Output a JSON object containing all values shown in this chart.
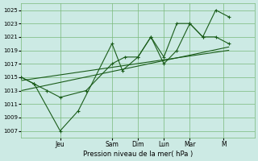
{
  "bg_color": "#cceae4",
  "grid_color": "#7ab87a",
  "line_color": "#1a5c1a",
  "xlabel": "Pression niveau de la mer( hPa )",
  "ylim": [
    1006,
    1026
  ],
  "yticks": [
    1007,
    1009,
    1011,
    1013,
    1015,
    1017,
    1019,
    1021,
    1023,
    1025
  ],
  "xlim": [
    0,
    9.0
  ],
  "day_labels": [
    "Jeu",
    "Sam",
    "Dim",
    "Lun",
    "Mar",
    "M"
  ],
  "day_positions": [
    1.5,
    3.5,
    4.5,
    5.5,
    6.5,
    7.8
  ],
  "line_jagged_x": [
    0.0,
    0.5,
    1.5,
    2.2,
    3.5,
    3.9,
    4.5,
    5.0,
    5.5,
    6.0,
    6.5,
    7.0,
    7.5,
    8.0
  ],
  "line_jagged_y": [
    1015,
    1014,
    1007,
    1010,
    1020,
    1016,
    1018,
    1021,
    1017,
    1019,
    1023,
    1021,
    1025,
    1024
  ],
  "line_smooth_x": [
    0.0,
    0.5,
    1.0,
    1.5,
    2.5,
    3.5,
    4.0,
    4.5,
    5.0,
    5.5,
    6.0,
    6.5,
    7.0,
    7.5,
    8.0
  ],
  "line_smooth_y": [
    1015,
    1014,
    1013,
    1012,
    1013,
    1017,
    1018,
    1018,
    1021,
    1018,
    1023,
    1023,
    1021,
    1021,
    1020
  ],
  "trend1_x": [
    0.0,
    8.0
  ],
  "trend1_y": [
    1013.0,
    1019.5
  ],
  "trend2_x": [
    0.0,
    8.0
  ],
  "trend2_y": [
    1014.5,
    1019.0
  ]
}
